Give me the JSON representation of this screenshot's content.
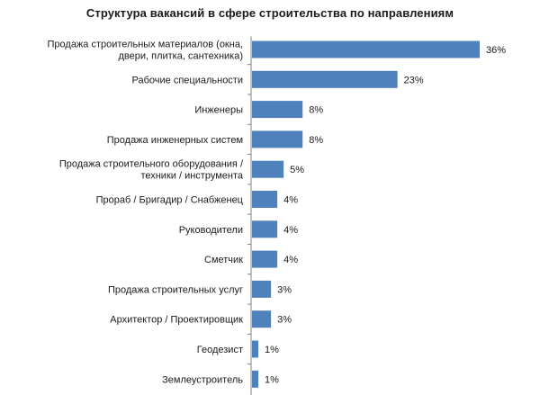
{
  "chart_data": {
    "type": "bar",
    "orientation": "horizontal",
    "title": "Структура вакансий в сфере строительства по направлениям",
    "categories": [
      [
        "Продажа строительных материалов (окна,",
        "двери, плитка, сантехника)"
      ],
      [
        "Рабочие специальности"
      ],
      [
        "Инженеры"
      ],
      [
        "Продажа инженерных систем"
      ],
      [
        "Продажа строительного оборудования /",
        "техники / инструмента"
      ],
      [
        "Прораб / Бригадир / Снабженец"
      ],
      [
        "Руководители"
      ],
      [
        "Сметчик"
      ],
      [
        "Продажа строительных услуг"
      ],
      [
        "Архитектор / Проектировщик"
      ],
      [
        "Геодезист"
      ],
      [
        "Землеустроитель"
      ]
    ],
    "values": [
      36,
      23,
      8,
      8,
      5,
      4,
      4,
      4,
      3,
      3,
      1,
      1
    ],
    "value_labels": [
      "36%",
      "23%",
      "8%",
      "8%",
      "5%",
      "4%",
      "4%",
      "4%",
      "3%",
      "3%",
      "1%",
      "1%"
    ],
    "xlabel": "",
    "ylabel": "",
    "xlim": [
      0,
      36
    ],
    "grid": false,
    "legend": "none",
    "bar_color": "#4f81bd",
    "axis_color": "#808080"
  }
}
